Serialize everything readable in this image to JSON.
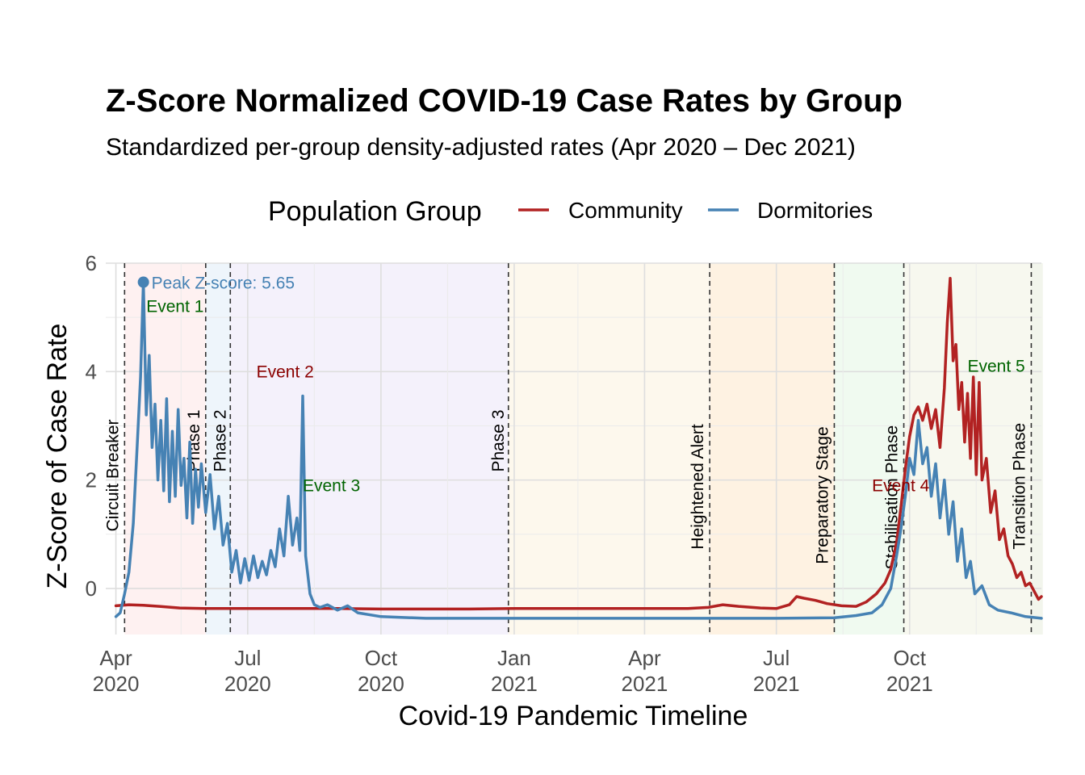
{
  "chart_data": {
    "type": "line",
    "title": "Z-Score Normalized COVID-19 Case Rates by Group",
    "subtitle": "Standardized per-group density-adjusted rates (Apr 2020 – Dec 2021)",
    "xlabel": "Covid-19 Pandemic Timeline",
    "ylabel": "Z-Score of Case Rate",
    "xlim": [
      "2020-03-25",
      "2021-12-31"
    ],
    "ylim": [
      -0.85,
      6.0
    ],
    "y_ticks": [
      0,
      2,
      4,
      6
    ],
    "x_ticks": [
      {
        "date": "2020-04-01",
        "line1": "Apr",
        "line2": "2020"
      },
      {
        "date": "2020-07-01",
        "line1": "Jul",
        "line2": "2020"
      },
      {
        "date": "2020-10-01",
        "line1": "Oct",
        "line2": "2020"
      },
      {
        "date": "2021-01-01",
        "line1": "Jan",
        "line2": "2021"
      },
      {
        "date": "2021-04-01",
        "line1": "Apr",
        "line2": "2021"
      },
      {
        "date": "2021-07-01",
        "line1": "Jul",
        "line2": "2021"
      },
      {
        "date": "2021-10-01",
        "line1": "Oct",
        "line2": "2021"
      }
    ],
    "grid": true,
    "legend": {
      "title": "Population Group",
      "placement": "top",
      "entries": [
        {
          "name": "Community",
          "color": "#b22222"
        },
        {
          "name": "Dormitories",
          "color": "#4682b4"
        }
      ]
    },
    "phases": [
      {
        "label": "Circuit Breaker",
        "start": "2020-04-07",
        "end": "2020-06-01",
        "color": "#fde8e8",
        "label_y": 1.05,
        "label_offset": -8
      },
      {
        "label": "Phase 1",
        "start": "2020-06-02",
        "end": "2020-06-18",
        "color": "#e3eef8",
        "label_y": 2.15,
        "label_offset": -8
      },
      {
        "label": "Phase 2",
        "start": "2020-06-19",
        "end": "2020-12-27",
        "color": "#ece8f8",
        "label_y": 2.15,
        "label_offset": -6
      },
      {
        "label": "Phase 3",
        "start": "2020-12-28",
        "end": "2021-05-15",
        "color": "#fbf4e1",
        "label_y": 2.15,
        "label_offset": -6
      },
      {
        "label": "Heightened Alert",
        "start": "2021-05-16",
        "end": "2021-08-09",
        "color": "#fde9cf",
        "label_y": 0.72,
        "label_offset": -8
      },
      {
        "label": "Preparatory Stage",
        "start": "2021-08-10",
        "end": "2021-09-26",
        "color": "#e6f6e6",
        "label_y": 0.45,
        "label_offset": -8
      },
      {
        "label": "Stabilisation Phase",
        "start": "2021-09-27",
        "end": "2021-12-23",
        "color": "#f1f4e4",
        "label_y": 0.35,
        "label_offset": -8
      },
      {
        "label": "Transition Phase",
        "start": "2021-12-24",
        "end": "2021-12-31",
        "color": "#eaeee0",
        "label_y": 0.72,
        "label_offset": -8
      }
    ],
    "events": [
      {
        "label": "Event 1",
        "date": "2020-04-22",
        "y": 5.2,
        "color": "#006400"
      },
      {
        "label": "Event 2",
        "date": "2020-07-07",
        "y": 4.0,
        "color": "#8b0000"
      },
      {
        "label": "Event 3",
        "date": "2020-08-08",
        "y": 1.9,
        "color": "#006400"
      },
      {
        "label": "Event 4",
        "date": "2021-09-05",
        "y": 1.9,
        "color": "#8b0000"
      },
      {
        "label": "Event 5",
        "date": "2021-11-10",
        "y": 4.1,
        "color": "#006400"
      }
    ],
    "peak": {
      "label": "Peak Z-score: 5.65",
      "date": "2020-04-20",
      "y": 5.65,
      "color": "#4682b4"
    },
    "series": [
      {
        "name": "Community",
        "color": "#b22222",
        "points": [
          [
            "2020-04-01",
            -0.32
          ],
          [
            "2020-04-10",
            -0.3
          ],
          [
            "2020-04-20",
            -0.31
          ],
          [
            "2020-05-01",
            -0.33
          ],
          [
            "2020-05-15",
            -0.36
          ],
          [
            "2020-06-01",
            -0.37
          ],
          [
            "2020-07-01",
            -0.37
          ],
          [
            "2020-08-01",
            -0.37
          ],
          [
            "2020-09-01",
            -0.37
          ],
          [
            "2020-10-01",
            -0.38
          ],
          [
            "2020-11-01",
            -0.38
          ],
          [
            "2020-12-01",
            -0.38
          ],
          [
            "2021-01-01",
            -0.37
          ],
          [
            "2021-02-01",
            -0.37
          ],
          [
            "2021-03-01",
            -0.37
          ],
          [
            "2021-04-01",
            -0.37
          ],
          [
            "2021-05-01",
            -0.37
          ],
          [
            "2021-05-15",
            -0.35
          ],
          [
            "2021-05-25",
            -0.3
          ],
          [
            "2021-06-05",
            -0.33
          ],
          [
            "2021-06-20",
            -0.36
          ],
          [
            "2021-07-01",
            -0.37
          ],
          [
            "2021-07-10",
            -0.3
          ],
          [
            "2021-07-15",
            -0.15
          ],
          [
            "2021-07-20",
            -0.18
          ],
          [
            "2021-07-28",
            -0.22
          ],
          [
            "2021-08-05",
            -0.28
          ],
          [
            "2021-08-15",
            -0.32
          ],
          [
            "2021-08-25",
            -0.33
          ],
          [
            "2021-09-01",
            -0.25
          ],
          [
            "2021-09-08",
            -0.1
          ],
          [
            "2021-09-14",
            0.1
          ],
          [
            "2021-09-18",
            0.35
          ],
          [
            "2021-09-22",
            0.85
          ],
          [
            "2021-09-25",
            1.5
          ],
          [
            "2021-09-28",
            2.2
          ],
          [
            "2021-10-01",
            2.8
          ],
          [
            "2021-10-04",
            3.2
          ],
          [
            "2021-10-07",
            3.35
          ],
          [
            "2021-10-10",
            3.1
          ],
          [
            "2021-10-13",
            3.4
          ],
          [
            "2021-10-16",
            2.95
          ],
          [
            "2021-10-19",
            3.3
          ],
          [
            "2021-10-22",
            2.6
          ],
          [
            "2021-10-25",
            3.7
          ],
          [
            "2021-10-27",
            4.9
          ],
          [
            "2021-10-29",
            5.72
          ],
          [
            "2021-10-31",
            4.2
          ],
          [
            "2021-11-02",
            4.5
          ],
          [
            "2021-11-04",
            3.3
          ],
          [
            "2021-11-06",
            3.8
          ],
          [
            "2021-11-08",
            2.7
          ],
          [
            "2021-11-10",
            3.6
          ],
          [
            "2021-11-12",
            2.4
          ],
          [
            "2021-11-14",
            3.9
          ],
          [
            "2021-11-16",
            2.1
          ],
          [
            "2021-11-18",
            3.8
          ],
          [
            "2021-11-20",
            2.0
          ],
          [
            "2021-11-23",
            2.4
          ],
          [
            "2021-11-26",
            1.4
          ],
          [
            "2021-11-29",
            1.8
          ],
          [
            "2021-12-02",
            0.9
          ],
          [
            "2021-12-05",
            1.1
          ],
          [
            "2021-12-08",
            0.6
          ],
          [
            "2021-12-11",
            0.45
          ],
          [
            "2021-12-14",
            0.2
          ],
          [
            "2021-12-17",
            0.3
          ],
          [
            "2021-12-20",
            0.05
          ],
          [
            "2021-12-23",
            0.1
          ],
          [
            "2021-12-26",
            -0.05
          ],
          [
            "2021-12-29",
            -0.2
          ],
          [
            "2021-12-31",
            -0.15
          ]
        ]
      },
      {
        "name": "Dormitories",
        "color": "#4682b4",
        "points": [
          [
            "2020-04-01",
            -0.52
          ],
          [
            "2020-04-04",
            -0.45
          ],
          [
            "2020-04-07",
            -0.1
          ],
          [
            "2020-04-10",
            0.3
          ],
          [
            "2020-04-13",
            1.2
          ],
          [
            "2020-04-16",
            2.8
          ],
          [
            "2020-04-18",
            3.9
          ],
          [
            "2020-04-20",
            5.65
          ],
          [
            "2020-04-22",
            3.2
          ],
          [
            "2020-04-24",
            4.3
          ],
          [
            "2020-04-26",
            2.6
          ],
          [
            "2020-04-28",
            3.4
          ],
          [
            "2020-04-30",
            2.0
          ],
          [
            "2020-05-02",
            3.1
          ],
          [
            "2020-05-04",
            1.8
          ],
          [
            "2020-05-06",
            3.5
          ],
          [
            "2020-05-08",
            1.6
          ],
          [
            "2020-05-10",
            2.9
          ],
          [
            "2020-05-12",
            1.7
          ],
          [
            "2020-05-14",
            3.3
          ],
          [
            "2020-05-16",
            1.9
          ],
          [
            "2020-05-18",
            2.4
          ],
          [
            "2020-05-20",
            1.3
          ],
          [
            "2020-05-22",
            2.7
          ],
          [
            "2020-05-24",
            1.2
          ],
          [
            "2020-05-26",
            2.2
          ],
          [
            "2020-05-28",
            1.5
          ],
          [
            "2020-05-30",
            2.3
          ],
          [
            "2020-06-02",
            1.4
          ],
          [
            "2020-06-05",
            2.1
          ],
          [
            "2020-06-08",
            1.1
          ],
          [
            "2020-06-11",
            1.7
          ],
          [
            "2020-06-14",
            0.8
          ],
          [
            "2020-06-17",
            1.2
          ],
          [
            "2020-06-20",
            0.3
          ],
          [
            "2020-06-23",
            0.7
          ],
          [
            "2020-06-26",
            0.1
          ],
          [
            "2020-06-29",
            0.55
          ],
          [
            "2020-07-02",
            0.15
          ],
          [
            "2020-07-05",
            0.6
          ],
          [
            "2020-07-08",
            0.2
          ],
          [
            "2020-07-11",
            0.5
          ],
          [
            "2020-07-14",
            0.25
          ],
          [
            "2020-07-17",
            0.7
          ],
          [
            "2020-07-20",
            0.4
          ],
          [
            "2020-07-23",
            1.1
          ],
          [
            "2020-07-26",
            0.6
          ],
          [
            "2020-07-29",
            1.7
          ],
          [
            "2020-08-01",
            0.8
          ],
          [
            "2020-08-04",
            1.3
          ],
          [
            "2020-08-06",
            0.7
          ],
          [
            "2020-08-08",
            3.55
          ],
          [
            "2020-08-10",
            0.6
          ],
          [
            "2020-08-13",
            -0.1
          ],
          [
            "2020-08-16",
            -0.3
          ],
          [
            "2020-08-20",
            -0.35
          ],
          [
            "2020-08-25",
            -0.3
          ],
          [
            "2020-09-01",
            -0.4
          ],
          [
            "2020-09-08",
            -0.32
          ],
          [
            "2020-09-15",
            -0.45
          ],
          [
            "2020-10-01",
            -0.52
          ],
          [
            "2020-11-01",
            -0.55
          ],
          [
            "2020-12-01",
            -0.55
          ],
          [
            "2021-01-01",
            -0.55
          ],
          [
            "2021-03-01",
            -0.55
          ],
          [
            "2021-05-01",
            -0.55
          ],
          [
            "2021-07-01",
            -0.55
          ],
          [
            "2021-08-10",
            -0.54
          ],
          [
            "2021-08-25",
            -0.5
          ],
          [
            "2021-09-05",
            -0.45
          ],
          [
            "2021-09-12",
            -0.3
          ],
          [
            "2021-09-18",
            0.0
          ],
          [
            "2021-09-22",
            0.6
          ],
          [
            "2021-09-25",
            1.1
          ],
          [
            "2021-09-28",
            1.7
          ],
          [
            "2021-10-01",
            2.4
          ],
          [
            "2021-10-04",
            2.1
          ],
          [
            "2021-10-07",
            3.1
          ],
          [
            "2021-10-10",
            2.3
          ],
          [
            "2021-10-13",
            2.6
          ],
          [
            "2021-10-16",
            1.7
          ],
          [
            "2021-10-19",
            2.3
          ],
          [
            "2021-10-22",
            1.3
          ],
          [
            "2021-10-25",
            2.0
          ],
          [
            "2021-10-28",
            1.0
          ],
          [
            "2021-10-31",
            1.6
          ],
          [
            "2021-11-03",
            0.5
          ],
          [
            "2021-11-06",
            1.1
          ],
          [
            "2021-11-09",
            0.2
          ],
          [
            "2021-11-12",
            0.5
          ],
          [
            "2021-11-15",
            -0.1
          ],
          [
            "2021-11-20",
            0.05
          ],
          [
            "2021-11-25",
            -0.3
          ],
          [
            "2021-12-01",
            -0.4
          ],
          [
            "2021-12-10",
            -0.45
          ],
          [
            "2021-12-20",
            -0.52
          ],
          [
            "2021-12-31",
            -0.55
          ]
        ]
      }
    ]
  }
}
